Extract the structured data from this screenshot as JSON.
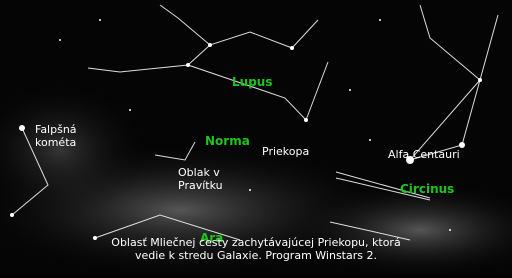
{
  "constellations": [
    "Lupus",
    "Norma",
    "Circinus",
    "Ara"
  ],
  "objects": [
    "Falpšná\nkométa",
    "Priekopa",
    "Oblak v\nPravítku",
    "Alfa Centauri"
  ],
  "caption": [
    "Oblasť Mliečnej cesty zachytávajúcej Priekopu, ktorá",
    "vedie k stredu Galaxie. Program Winstars 2."
  ]
}
